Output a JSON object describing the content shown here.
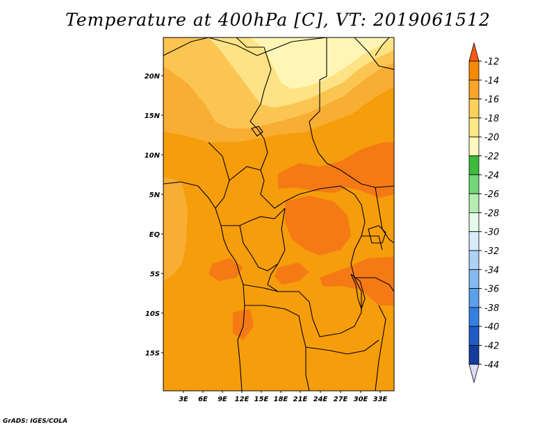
{
  "title": "Temperature at 400hPa [C], VT: 2019061512",
  "credit": "GrADS: IGES/COLA",
  "map": {
    "lat_labels": [
      "20N",
      "15N",
      "10N",
      "5N",
      "EQ",
      "5S",
      "10S",
      "15S"
    ],
    "lon_labels": [
      "3E",
      "6E",
      "9E",
      "12E",
      "15E",
      "18E",
      "21E",
      "24E",
      "27E",
      "30E",
      "33E"
    ],
    "region": "Central Africa"
  },
  "colorbar": {
    "levels": [
      "-12",
      "-14",
      "-16",
      "-18",
      "-20",
      "-22",
      "-24",
      "-26",
      "-28",
      "-30",
      "-32",
      "-34",
      "-36",
      "-38",
      "-40",
      "-42",
      "-44"
    ],
    "colors": [
      "#ff5a12",
      "#f78a00",
      "#faa528",
      "#fbd15a",
      "#fde985",
      "#fff8bd",
      "#3cbb3c",
      "#74d77a",
      "#b5eeb1",
      "#e5f9e8",
      "#d7ebfb",
      "#aed2f6",
      "#85baf0",
      "#5aa0ea",
      "#3380e2",
      "#1f5cc8",
      "#133c9c",
      "#0a1f6a",
      "#dcdcf4"
    ]
  },
  "palette": {
    "m14": "#f59d0a",
    "m16": "#f8ad33",
    "m18": "#fbc552",
    "m20": "#fde385",
    "m22": "#fff6b6",
    "m12": "#f57a16"
  }
}
